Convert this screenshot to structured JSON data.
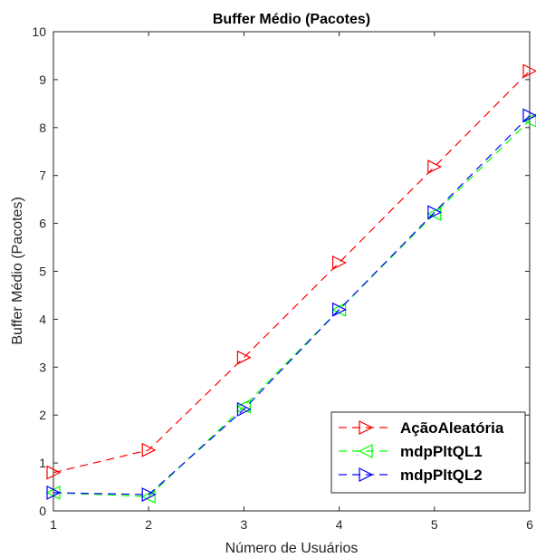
{
  "chart_data": {
    "type": "line",
    "title": "Buffer Médio (Pacotes)",
    "xlabel": "Número de Usuários",
    "ylabel": "Buffer Médio (Pacotes)",
    "xlim": [
      1,
      6
    ],
    "ylim": [
      0,
      10
    ],
    "xticks": [
      "1",
      "2",
      "3",
      "4",
      "5",
      "6"
    ],
    "yticks": [
      "0",
      "1",
      "2",
      "3",
      "4",
      "5",
      "6",
      "7",
      "8",
      "9",
      "10"
    ],
    "grid": false,
    "legend_position": "bottom-right",
    "x": [
      1,
      2,
      3,
      4,
      5,
      6
    ],
    "series": [
      {
        "name": "AçãoAleatória",
        "color": "#ff0000",
        "marker": "triangle-right",
        "values": [
          0.8,
          1.27,
          3.2,
          5.18,
          7.18,
          9.18
        ]
      },
      {
        "name": "mdpPltQL1",
        "color": "#00ff00",
        "marker": "triangle-left",
        "values": [
          0.38,
          0.3,
          2.18,
          4.2,
          6.2,
          8.15
        ]
      },
      {
        "name": "mdpPltQL2",
        "color": "#0000ff",
        "marker": "triangle-right",
        "values": [
          0.38,
          0.34,
          2.12,
          4.2,
          6.23,
          8.25
        ]
      }
    ]
  }
}
